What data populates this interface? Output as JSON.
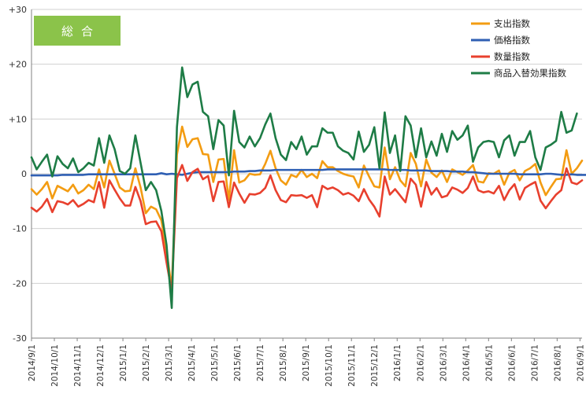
{
  "chart_data": {
    "type": "line",
    "title": "",
    "badge": "総合",
    "ylim": [
      -30,
      30
    ],
    "y_ticks": [
      30,
      20,
      10,
      0,
      -10,
      -20,
      -30
    ],
    "y_tick_labels": [
      "+30",
      "+20",
      "+10",
      "0",
      "-10",
      "-20",
      "-30"
    ],
    "grid": "horizontal",
    "legend_position": "top-right",
    "colors": {
      "badge": "#8bc34a",
      "grid": "#d0d0d0",
      "axis": "#808080"
    },
    "x_tick_labels": [
      "2014/9/1",
      "2014/10/1",
      "2014/11/1",
      "2014/12/1",
      "2015/1/1",
      "2015/2/1",
      "2015/3/1",
      "2015/4/1",
      "2015/5/1",
      "2015/6/1",
      "2015/7/1",
      "2015/8/1",
      "2015/9/1",
      "2015/10/1",
      "2015/11/1",
      "2015/12/1",
      "2016/1/1",
      "2016/2/1",
      "2016/3/1",
      "2016/4/1",
      "2016/5/1",
      "2016/6/1",
      "2016/7/1",
      "2016/8/1",
      "2016/9/1"
    ],
    "x_index_per_tick": 4.4,
    "series": [
      {
        "name": "支出指数",
        "color": "#f39c12",
        "values": [
          -2.8,
          -3.8,
          -2.8,
          -1.5,
          -4.5,
          -2.2,
          -2.7,
          -3.2,
          -2.0,
          -3.6,
          -3.0,
          -2.0,
          -2.8,
          0.8,
          -2.5,
          2.4,
          0.0,
          -2.5,
          -3.2,
          -3.1,
          1.0,
          -2.5,
          -7.2,
          -6.0,
          -6.5,
          -8.5,
          -14.0,
          -21.0,
          3.5,
          8.6,
          4.9,
          6.3,
          6.5,
          3.6,
          3.5,
          -1.5,
          2.6,
          2.7,
          -4.8,
          4.3,
          -1.6,
          -1.2,
          0.0,
          -0.2,
          -0.1,
          1.8,
          4.2,
          1.0,
          -1.2,
          -2.0,
          -0.2,
          -0.6,
          0.7,
          -0.6,
          0.0,
          -0.8,
          2.3,
          1.2,
          1.2,
          0.5,
          0.0,
          -0.3,
          -0.5,
          -2.5,
          1.5,
          -0.5,
          -2.3,
          -2.5,
          4.8,
          -1.0,
          1.2,
          -1.2,
          -2.3,
          3.8,
          1.8,
          -2.3,
          2.6,
          0.2,
          -0.6,
          0.6,
          -1.5,
          0.8,
          0.3,
          -0.2,
          0.6,
          1.6,
          -1.4,
          -1.6,
          0.1,
          0.0,
          0.6,
          -2.0,
          0.2,
          0.7,
          -1.2,
          0.5,
          1.0,
          1.8,
          -1.6,
          -3.9,
          -2.4,
          -1.0,
          -0.9,
          4.3,
          0.0,
          1.0,
          2.4
        ]
      },
      {
        "name": "価格指数",
        "color": "#2f5fb3",
        "values": [
          -0.3,
          -0.3,
          -0.3,
          -0.3,
          -0.3,
          -0.3,
          -0.2,
          -0.2,
          -0.2,
          -0.2,
          -0.2,
          -0.1,
          -0.1,
          -0.1,
          -0.1,
          -0.1,
          -0.1,
          -0.1,
          -0.1,
          -0.1,
          -0.1,
          -0.1,
          -0.1,
          -0.1,
          -0.1,
          0.1,
          -0.1,
          0.0,
          -0.1,
          -0.2,
          0.0,
          0.2,
          0.3,
          0.3,
          0.3,
          0.3,
          0.3,
          0.3,
          0.3,
          0.4,
          0.4,
          0.4,
          0.5,
          0.5,
          0.6,
          0.6,
          0.6,
          0.7,
          0.7,
          0.7,
          0.7,
          0.7,
          0.7,
          0.7,
          0.7,
          0.7,
          0.7,
          0.8,
          0.8,
          0.8,
          0.8,
          0.8,
          0.8,
          0.8,
          0.8,
          0.8,
          0.8,
          0.8,
          0.8,
          0.7,
          0.7,
          0.7,
          0.7,
          0.6,
          0.6,
          0.6,
          0.6,
          0.5,
          0.5,
          0.5,
          0.5,
          0.4,
          0.4,
          0.4,
          0.3,
          0.3,
          0.2,
          0.1,
          0.0,
          0.0,
          0.0,
          0.0,
          0.0,
          0.0,
          -0.1,
          -0.1,
          -0.1,
          -0.1,
          -0.1,
          0.0,
          0.0,
          -0.1,
          -0.2,
          -0.2,
          -0.1,
          -0.2,
          -0.2,
          -0.2,
          -0.3
        ]
      },
      {
        "name": "数量指数",
        "color": "#e8402e",
        "values": [
          -6.2,
          -6.9,
          -6.0,
          -4.6,
          -7.0,
          -5.0,
          -5.2,
          -5.6,
          -4.8,
          -6.0,
          -5.5,
          -4.8,
          -5.2,
          -1.5,
          -6.2,
          -1.2,
          -2.9,
          -4.5,
          -5.8,
          -5.8,
          -2.4,
          -5.0,
          -9.2,
          -8.8,
          -8.7,
          -10.5,
          -16.2,
          -21.5,
          -0.8,
          1.6,
          -1.3,
          0.3,
          0.9,
          -1.0,
          -0.4,
          -5.0,
          -1.5,
          -1.4,
          -6.1,
          -1.6,
          -3.6,
          -5.3,
          -3.7,
          -3.8,
          -3.5,
          -2.6,
          -0.3,
          -3.0,
          -4.8,
          -5.2,
          -3.9,
          -4.0,
          -3.9,
          -4.4,
          -3.9,
          -6.1,
          -2.2,
          -2.8,
          -2.5,
          -3.0,
          -3.8,
          -3.5,
          -4.0,
          -5.0,
          -2.8,
          -4.7,
          -6.0,
          -7.8,
          -0.5,
          -3.8,
          -2.8,
          -4.0,
          -5.2,
          -0.9,
          -2.0,
          -6.0,
          -1.5,
          -3.8,
          -2.6,
          -4.3,
          -4.0,
          -2.5,
          -2.9,
          -3.5,
          -2.6,
          -0.5,
          -3.0,
          -3.4,
          -3.2,
          -3.6,
          -2.2,
          -4.8,
          -3.0,
          -1.9,
          -4.7,
          -2.6,
          -2.0,
          -1.5,
          -4.9,
          -6.3,
          -5.0,
          -3.8,
          -3.0,
          1.0,
          -1.6,
          -1.9,
          -1.2
        ]
      },
      {
        "name": "商品入替効果指数",
        "color": "#1e7c46",
        "values": [
          3.0,
          0.8,
          2.2,
          3.5,
          -0.5,
          3.2,
          1.8,
          1.0,
          2.8,
          0.3,
          1.0,
          2.0,
          1.5,
          6.5,
          2.0,
          7.0,
          4.5,
          0.5,
          0.0,
          1.0,
          7.0,
          2.0,
          -3.0,
          -1.5,
          -3.0,
          -6.8,
          -13.0,
          -24.5,
          8.5,
          19.4,
          14.0,
          16.3,
          16.8,
          11.3,
          10.5,
          4.5,
          9.8,
          8.8,
          -0.3,
          11.5,
          5.8,
          4.8,
          6.8,
          5.0,
          6.5,
          9.0,
          11.0,
          6.5,
          3.5,
          2.5,
          5.8,
          4.5,
          6.8,
          3.5,
          5.0,
          5.0,
          8.3,
          7.5,
          7.5,
          5.0,
          4.2,
          3.8,
          2.6,
          7.7,
          4.0,
          5.3,
          8.5,
          1.0,
          11.2,
          3.8,
          7.0,
          0.5,
          10.5,
          8.8,
          3.0,
          8.3,
          3.0,
          5.9,
          3.3,
          7.3,
          4.0,
          7.8,
          6.2,
          7.0,
          8.8,
          2.2,
          4.8,
          5.8,
          6.0,
          5.8,
          3.0,
          6.1,
          7.0,
          3.3,
          5.8,
          5.8,
          7.8,
          3.0,
          0.7,
          4.8,
          5.3,
          6.0,
          11.3,
          7.5,
          7.9,
          11.0
        ]
      }
    ]
  }
}
